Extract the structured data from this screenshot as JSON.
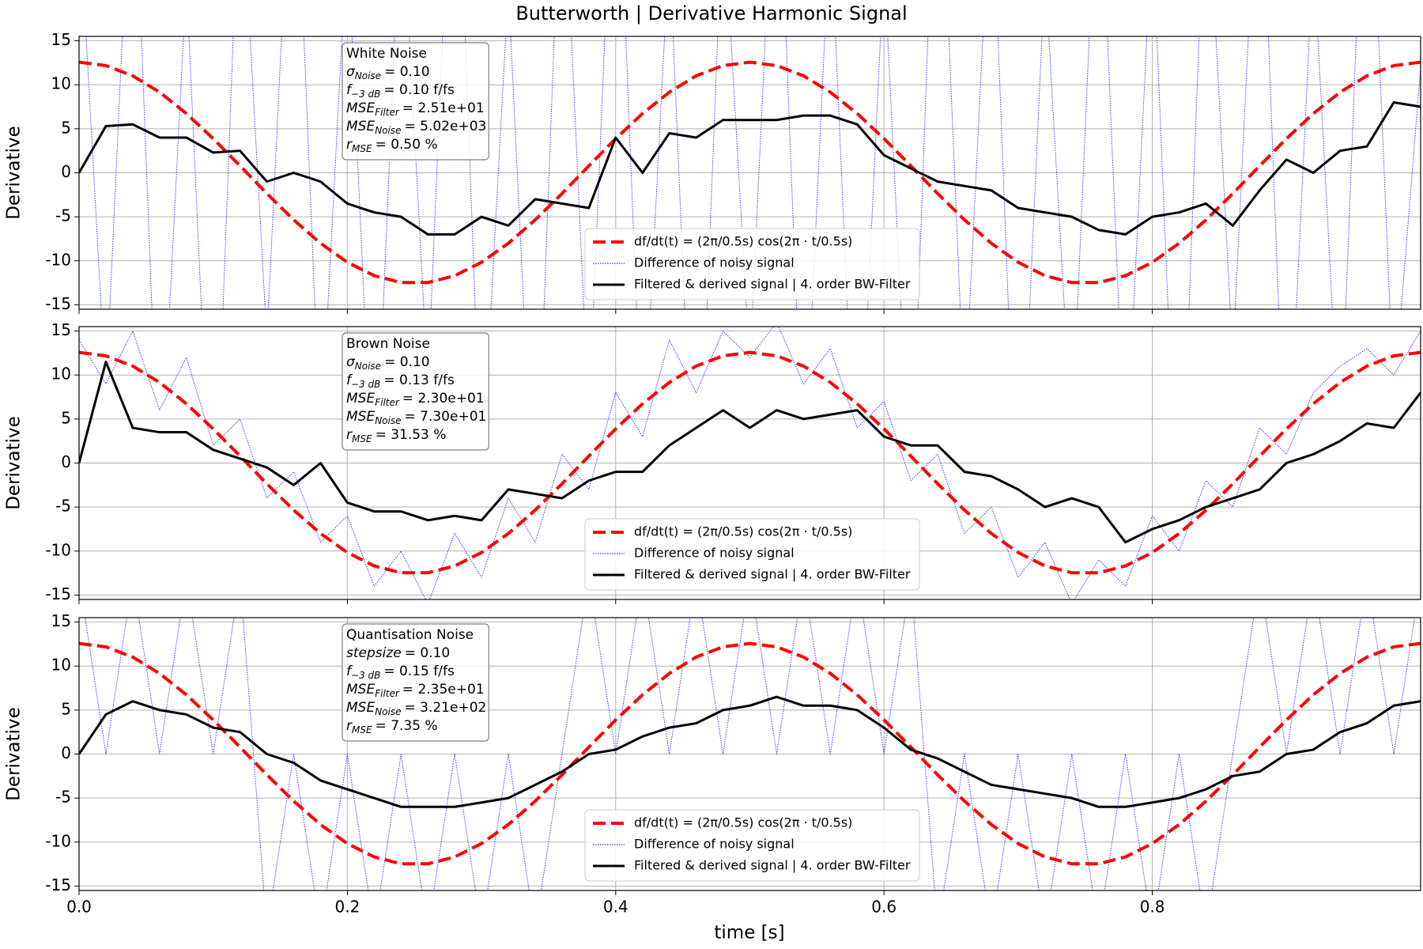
{
  "title": "Butterworth | Derivative Harmonic Signal",
  "xlabel": "time [s]",
  "chart_data": [
    {
      "type": "line",
      "ylabel": "Derivative",
      "xlim": [
        0,
        1
      ],
      "ylim": [
        -15.5,
        15.5
      ],
      "xticks": [
        {
          "value": 0,
          "label": "0.0"
        },
        0.2,
        0.4,
        0.6,
        0.8
      ],
      "yticks": [
        -15,
        -10,
        -5,
        0,
        5,
        10,
        15
      ],
      "grid": true,
      "legend": "lower center",
      "annotation": [
        {
          "text": "White Noise"
        },
        {
          "symbol": "σ",
          "sub": "Noise",
          "text": "= 0.10"
        },
        {
          "symbol": "f",
          "sub": "−3 dB",
          "text": "= 0.10 f/fs"
        },
        {
          "symbol": "MSE",
          "sub": "Filter",
          "text": "= 2.51e+01"
        },
        {
          "symbol": "MSE",
          "sub": "Noise",
          "text": "= 5.02e+03"
        },
        {
          "symbol": "r",
          "sub": "MSE",
          "text": "= 0.50 %"
        }
      ],
      "x": [
        0,
        0.02,
        0.04,
        0.06,
        0.08,
        0.1,
        0.12,
        0.14,
        0.16,
        0.18,
        0.2,
        0.22,
        0.24,
        0.26,
        0.28,
        0.3,
        0.32,
        0.34,
        0.36,
        0.38,
        0.4,
        0.42,
        0.44,
        0.46,
        0.48,
        0.5,
        0.52,
        0.54,
        0.56,
        0.58,
        0.6,
        0.62,
        0.64,
        0.66,
        0.68,
        0.7,
        0.72,
        0.74,
        0.76,
        0.78,
        0.8,
        0.82,
        0.84,
        0.86,
        0.88,
        0.9,
        0.92,
        0.94,
        0.96,
        0.98,
        1.0
      ],
      "series": [
        {
          "name": "df/dt(t) = (2π/0.5s) cos(2π · t/0.5s)",
          "color": "#ff0000",
          "linestyle": "dashed",
          "values": [
            12.57,
            12.18,
            11.02,
            9.16,
            6.73,
            3.88,
            0.79,
            -2.36,
            -5.35,
            -8.01,
            -10.17,
            -11.69,
            -12.47,
            -12.47,
            -11.69,
            -10.17,
            -8.01,
            -5.35,
            -2.36,
            0.79,
            3.88,
            6.73,
            9.16,
            11.02,
            12.18,
            12.57,
            12.18,
            11.02,
            9.16,
            6.73,
            3.88,
            0.79,
            -2.36,
            -5.35,
            -8.01,
            -10.17,
            -11.69,
            -12.47,
            -12.47,
            -11.69,
            -10.17,
            -8.01,
            -5.35,
            -2.36,
            0.79,
            3.88,
            6.73,
            9.16,
            11.02,
            12.18,
            12.57
          ]
        },
        {
          "name": "Difference of noisy signal",
          "color": "#0000ff",
          "linestyle": "dotted",
          "values": [
            30,
            -25,
            41,
            -38,
            22,
            -45,
            36,
            -19,
            44,
            -31,
            27,
            -40,
            33,
            -24,
            48,
            -35,
            21,
            -42,
            39,
            -28,
            45,
            -33,
            26,
            -47,
            31,
            -22,
            43,
            -36,
            29,
            -41,
            24,
            -38,
            46,
            -27,
            35,
            -44,
            23,
            -30,
            40,
            -34,
            28,
            -46,
            37,
            -21,
            42,
            -39,
            25,
            -32,
            47,
            -26,
            12
          ]
        },
        {
          "name": "Filtered & derived signal | 4. order BW-Filter",
          "color": "#000000",
          "linestyle": "solid",
          "values": [
            0,
            5.3,
            5.5,
            4,
            4,
            2.3,
            2.5,
            -1,
            0,
            -1,
            -3.5,
            -4.5,
            -5,
            -7,
            -7,
            -5,
            -6,
            -3,
            -3.5,
            -4,
            4,
            0,
            4.5,
            4,
            6,
            6,
            6,
            6.5,
            6.5,
            5.5,
            2,
            0.5,
            -1,
            -1.5,
            -2,
            -4,
            -4.5,
            -5,
            -6.5,
            -7,
            -5,
            -4.5,
            -3.5,
            -6,
            -2,
            1.5,
            0,
            2.5,
            3,
            8,
            7.5
          ]
        }
      ]
    },
    {
      "type": "line",
      "ylabel": "Derivative",
      "xlim": [
        0,
        1
      ],
      "ylim": [
        -15.5,
        15.5
      ],
      "xticks": [
        {
          "value": 0,
          "label": "0.0"
        },
        0.2,
        0.4,
        0.6,
        0.8
      ],
      "yticks": [
        -15,
        -10,
        -5,
        0,
        5,
        10,
        15
      ],
      "grid": true,
      "legend": "lower center",
      "annotation": [
        {
          "text": "Brown Noise"
        },
        {
          "symbol": "σ",
          "sub": "Noise",
          "text": "= 0.10"
        },
        {
          "symbol": "f",
          "sub": "−3 dB",
          "text": "= 0.13 f/fs"
        },
        {
          "symbol": "MSE",
          "sub": "Filter",
          "text": "= 2.30e+01"
        },
        {
          "symbol": "MSE",
          "sub": "Noise",
          "text": "= 7.30e+01"
        },
        {
          "symbol": "r",
          "sub": "MSE",
          "text": "= 31.53 %"
        }
      ],
      "x": [
        0,
        0.02,
        0.04,
        0.06,
        0.08,
        0.1,
        0.12,
        0.14,
        0.16,
        0.18,
        0.2,
        0.22,
        0.24,
        0.26,
        0.28,
        0.3,
        0.32,
        0.34,
        0.36,
        0.38,
        0.4,
        0.42,
        0.44,
        0.46,
        0.48,
        0.5,
        0.52,
        0.54,
        0.56,
        0.58,
        0.6,
        0.62,
        0.64,
        0.66,
        0.68,
        0.7,
        0.72,
        0.74,
        0.76,
        0.78,
        0.8,
        0.82,
        0.84,
        0.86,
        0.88,
        0.9,
        0.92,
        0.94,
        0.96,
        0.98,
        1.0
      ],
      "series": [
        {
          "name": "df/dt(t) = (2π/0.5s) cos(2π · t/0.5s)",
          "color": "#ff0000",
          "linestyle": "dashed",
          "values": [
            12.57,
            12.18,
            11.02,
            9.16,
            6.73,
            3.88,
            0.79,
            -2.36,
            -5.35,
            -8.01,
            -10.17,
            -11.69,
            -12.47,
            -12.47,
            -11.69,
            -10.17,
            -8.01,
            -5.35,
            -2.36,
            0.79,
            3.88,
            6.73,
            9.16,
            11.02,
            12.18,
            12.57,
            12.18,
            11.02,
            9.16,
            6.73,
            3.88,
            0.79,
            -2.36,
            -5.35,
            -8.01,
            -10.17,
            -11.69,
            -12.47,
            -12.47,
            -11.69,
            -10.17,
            -8.01,
            -5.35,
            -2.36,
            0.79,
            3.88,
            6.73,
            9.16,
            11.02,
            12.18,
            12.57
          ]
        },
        {
          "name": "Difference of noisy signal",
          "color": "#0000ff",
          "linestyle": "dotted",
          "values": [
            14,
            9,
            15,
            6,
            12,
            2,
            5,
            -4,
            -1,
            -9,
            -6,
            -14,
            -10,
            -16,
            -8,
            -13,
            -4,
            -9,
            1,
            -3,
            8,
            3,
            14,
            8,
            15,
            12,
            16,
            9,
            13,
            4,
            7,
            -2,
            1,
            -8,
            -5,
            -13,
            -9,
            -16,
            -11,
            -14,
            -6,
            -10,
            -2,
            -5,
            4,
            1,
            8,
            11,
            13,
            10,
            15
          ]
        },
        {
          "name": "Filtered & derived signal | 4. order BW-Filter",
          "color": "#000000",
          "linestyle": "solid",
          "values": [
            0,
            11.5,
            4,
            3.5,
            3.5,
            1.5,
            0.5,
            -0.5,
            -2.5,
            0,
            -4.5,
            -5.5,
            -5.5,
            -6.5,
            -6,
            -6.5,
            -3,
            -3.5,
            -4,
            -2,
            -1,
            -1,
            2,
            4,
            6,
            4,
            6,
            5,
            5.5,
            6,
            3,
            2,
            2,
            -1,
            -1.5,
            -3,
            -5,
            -4,
            -5,
            -9,
            -7.5,
            -6.5,
            -5,
            -4,
            -3,
            0,
            1,
            2.5,
            4.5,
            4,
            8
          ]
        }
      ]
    },
    {
      "type": "line",
      "ylabel": "Derivative",
      "xlim": [
        0,
        1
      ],
      "ylim": [
        -15.5,
        15.5
      ],
      "xticks": [
        {
          "value": 0,
          "label": "0.0"
        },
        0.2,
        0.4,
        0.6,
        0.8
      ],
      "yticks": [
        -15,
        -10,
        -5,
        0,
        5,
        10,
        15
      ],
      "grid": true,
      "legend": "lower center",
      "annotation": [
        {
          "text": "Quantisation Noise"
        },
        {
          "symbol": "stepsize",
          "text": "= 0.10"
        },
        {
          "symbol": "f",
          "sub": "−3 dB",
          "text": "= 0.15 f/fs"
        },
        {
          "symbol": "MSE",
          "sub": "Filter",
          "text": "= 2.35e+01"
        },
        {
          "symbol": "MSE",
          "sub": "Noise",
          "text": "= 3.21e+02"
        },
        {
          "symbol": "r",
          "sub": "MSE",
          "text": "= 7.35 %"
        }
      ],
      "x": [
        0,
        0.02,
        0.04,
        0.06,
        0.08,
        0.1,
        0.12,
        0.14,
        0.16,
        0.18,
        0.2,
        0.22,
        0.24,
        0.26,
        0.28,
        0.3,
        0.32,
        0.34,
        0.36,
        0.38,
        0.4,
        0.42,
        0.44,
        0.46,
        0.48,
        0.5,
        0.52,
        0.54,
        0.56,
        0.58,
        0.6,
        0.62,
        0.64,
        0.66,
        0.68,
        0.7,
        0.72,
        0.74,
        0.76,
        0.78,
        0.8,
        0.82,
        0.84,
        0.86,
        0.88,
        0.9,
        0.92,
        0.94,
        0.96,
        0.98,
        1.0
      ],
      "series": [
        {
          "name": "df/dt(t) = (2π/0.5s) cos(2π · t/0.5s)",
          "color": "#ff0000",
          "linestyle": "dashed",
          "values": [
            12.57,
            12.18,
            11.02,
            9.16,
            6.73,
            3.88,
            0.79,
            -2.36,
            -5.35,
            -8.01,
            -10.17,
            -11.69,
            -12.47,
            -12.47,
            -11.69,
            -10.17,
            -8.01,
            -5.35,
            -2.36,
            0.79,
            3.88,
            6.73,
            9.16,
            11.02,
            12.18,
            12.57,
            12.18,
            11.02,
            9.16,
            6.73,
            3.88,
            0.79,
            -2.36,
            -5.35,
            -8.01,
            -10.17,
            -11.69,
            -12.47,
            -12.47,
            -11.69,
            -10.17,
            -8.01,
            -5.35,
            -2.36,
            0.79,
            3.88,
            6.73,
            9.16,
            11.02,
            12.18,
            12.57
          ]
        },
        {
          "name": "Difference of noisy signal",
          "color": "#0000ff",
          "linestyle": "dotted",
          "values": [
            20,
            0,
            20,
            0,
            20,
            0,
            20,
            -20,
            0,
            -20,
            0,
            -20,
            0,
            -20,
            0,
            -20,
            0,
            -20,
            0,
            20,
            0,
            20,
            0,
            20,
            0,
            20,
            0,
            20,
            0,
            20,
            0,
            20,
            -20,
            0,
            -20,
            0,
            -20,
            0,
            -20,
            0,
            -20,
            0,
            -20,
            0,
            20,
            0,
            20,
            0,
            20,
            0,
            20
          ]
        },
        {
          "name": "Filtered & derived signal | 4. order BW-Filter",
          "color": "#000000",
          "linestyle": "solid",
          "values": [
            0,
            4.5,
            6,
            5,
            4.5,
            3,
            2.5,
            0,
            -1,
            -3,
            -4,
            -5,
            -6,
            -6,
            -6,
            -5.5,
            -5,
            -3.5,
            -2,
            0,
            0.5,
            2,
            3,
            3.5,
            5,
            5.5,
            6.5,
            5.5,
            5.5,
            5,
            3,
            0.5,
            -0.5,
            -2,
            -3.5,
            -4,
            -4.5,
            -5,
            -6,
            -6,
            -5.5,
            -5,
            -4,
            -2.5,
            -2,
            0,
            0.5,
            2.5,
            3.5,
            5.5,
            6
          ]
        }
      ]
    }
  ]
}
